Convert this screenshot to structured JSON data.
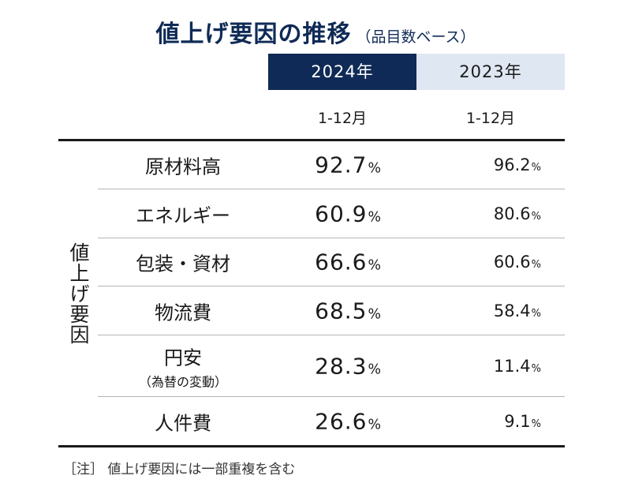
{
  "title": {
    "main": "値上げ要因の推移",
    "sub": "（品目数ベース）"
  },
  "columns": [
    {
      "year": "2024年",
      "period": "1-12月",
      "accent": "#0f2a56"
    },
    {
      "year": "2023年",
      "period": "1-12月",
      "accent": "#dfe7f2"
    }
  ],
  "row_group_label": "値上げ要因",
  "percent_unit": "%",
  "rows": [
    {
      "name": "原材料高",
      "note": "",
      "v2024": "92.7",
      "v2023": "96.2"
    },
    {
      "name": "エネルギー",
      "note": "",
      "v2024": "60.9",
      "v2023": "80.6"
    },
    {
      "name": "包装・資材",
      "note": "",
      "v2024": "66.6",
      "v2023": "60.6"
    },
    {
      "name": "物流費",
      "note": "",
      "v2024": "68.5",
      "v2023": "58.4"
    },
    {
      "name": "円安",
      "note": "（為替の変動）",
      "v2024": "28.3",
      "v2023": "11.4"
    },
    {
      "name": "人件費",
      "note": "",
      "v2024": "26.6",
      "v2023": "9.1"
    }
  ],
  "footnote": "［注］ 値上げ要因には一部重複を含む",
  "chart_data": {
    "type": "table",
    "title": "値上げ要因の推移",
    "subtitle": "（品目数ベース）",
    "columns": [
      "2024年 1-12月",
      "2023年 1-12月"
    ],
    "row_group": "値上げ要因",
    "categories": [
      "原材料高",
      "エネルギー",
      "包装・資材",
      "物流費",
      "円安（為替の変動）",
      "人件費"
    ],
    "series": [
      {
        "name": "2024年",
        "values": [
          92.7,
          60.9,
          66.6,
          68.5,
          28.3,
          26.6
        ]
      },
      {
        "name": "2023年",
        "values": [
          96.2,
          80.6,
          60.6,
          58.4,
          11.4,
          9.1
        ]
      }
    ],
    "unit": "%"
  }
}
